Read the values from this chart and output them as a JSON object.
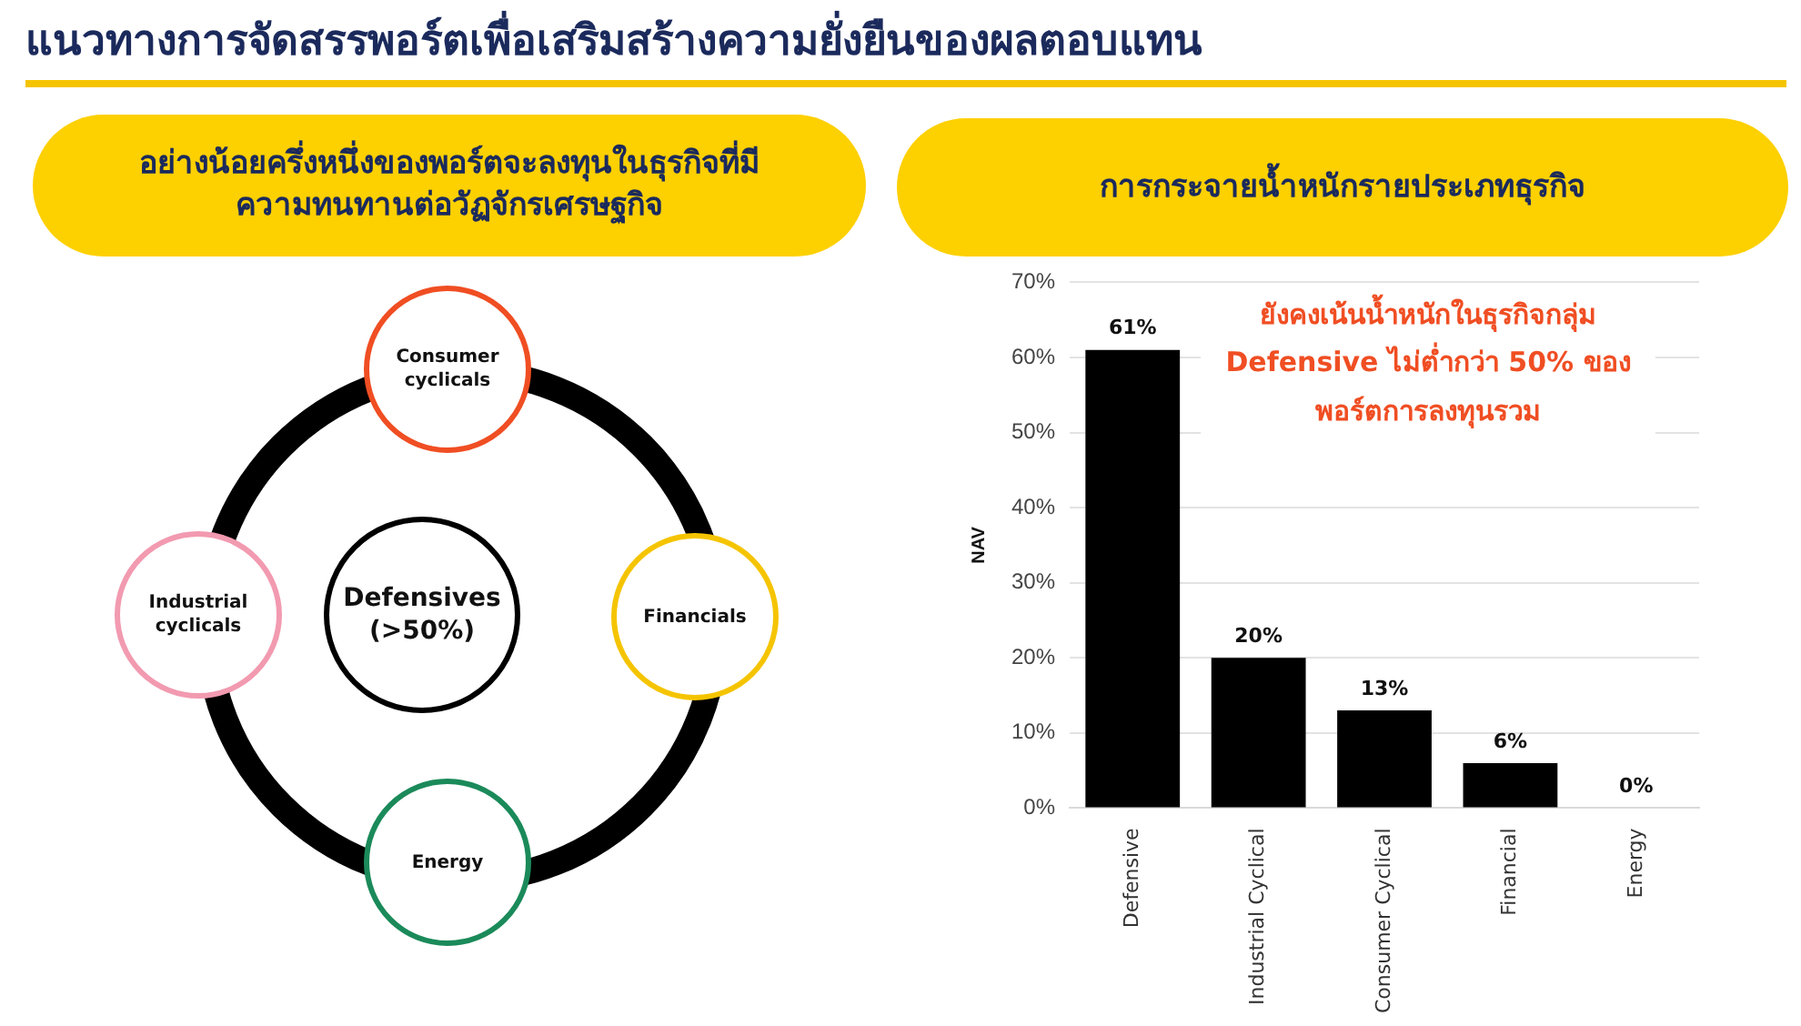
{
  "chart_data": [
    {
      "type": "other",
      "title": "แนวทางการจัดสรรพอร์ตเพื่อเสริมสร้างความยั่งยืนของผลตอบแทน",
      "subtitle": "อย่างน้อยครึ่งหนึ่งของพอร์ตจะลงทุนในธุรกิจที่มีความทนทานต่อวัฏจักรเศรษฐกิจ",
      "annotations": [
        "Consumer cyclicals",
        "Financials",
        "Energy",
        "Industrial cyclicals",
        "Defensives (>50%)"
      ]
    },
    {
      "type": "bar",
      "title": "การกระจายน้ำหนักรายประเภทธุรกิจ",
      "ylabel": "NAV",
      "annotations": [
        "ยังคงเน้นน้ำหนักในธุรกิจกลุ่ม Defensive ไม่ต่ำกว่า 50% ของพอร์ตการลงทุนรวม"
      ],
      "categories": [
        "Defensive",
        "Industrial Cyclical",
        "Consumer Cyclical",
        "Financial",
        "Energy"
      ],
      "values": [
        61,
        20,
        13,
        6,
        0
      ],
      "value_labels": [
        "61%",
        "20%",
        "13%",
        "6%",
        "0%"
      ],
      "color": "#000000",
      "ylim": [
        0,
        70
      ],
      "yticks": [
        {
          "value": 0,
          "label": "0%"
        },
        {
          "value": 10,
          "label": "10%"
        },
        {
          "value": 20,
          "label": "20%"
        },
        {
          "value": 30,
          "label": "30%"
        },
        {
          "value": 40,
          "label": "40%"
        },
        {
          "value": 50,
          "label": "50%"
        },
        {
          "value": 60,
          "label": "60%"
        },
        {
          "value": 70,
          "label": "70%"
        }
      ],
      "grid": "y"
    }
  ]
}
